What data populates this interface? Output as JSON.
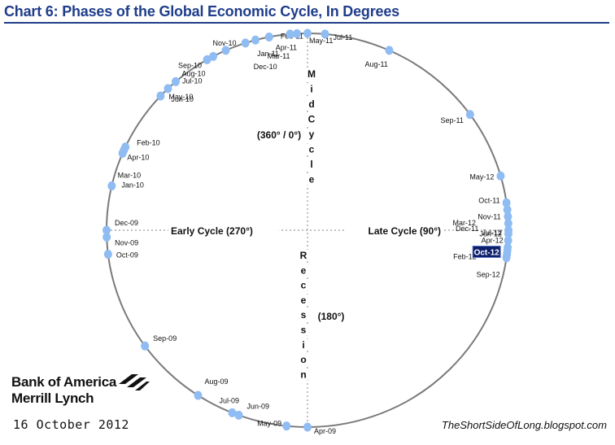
{
  "title": "Chart 6: Phases of the Global Economic Cycle, In Degrees",
  "branding": {
    "logo_line1": "Bank of America",
    "logo_line2": "Merrill Lynch",
    "date": "16 October 2012",
    "source": "TheShortSideOfLong.blogspot.com"
  },
  "colors": {
    "title": "#1f3d8a",
    "points": "#8fbcf2",
    "highlight_bg": "#0d1f6b",
    "circle": "#7a7a7a"
  },
  "chart_data": {
    "type": "scatter",
    "subtype": "polar-circle",
    "title": "Chart 6: Phases of the Global Economic Cycle, In Degrees",
    "axes": {
      "top_label_text": "Mid Cycle",
      "right_label": "Late Cycle (90°)",
      "left_label": "Early Cycle (270°)",
      "bottom_label_text": "Recession",
      "top_value": "(360° / 0°)",
      "bottom_value": "(180°)"
    },
    "points": [
      {
        "label": "Apr-09",
        "degree": 180
      },
      {
        "label": "May-09",
        "degree": 186
      },
      {
        "label": "Jun-09",
        "degree": 200
      },
      {
        "label": "Jul-09",
        "degree": 202
      },
      {
        "label": "Aug-09",
        "degree": 213
      },
      {
        "label": "Sep-09",
        "degree": 234
      },
      {
        "label": "Oct-09",
        "degree": 263
      },
      {
        "label": "Nov-09",
        "degree": 268
      },
      {
        "label": "Dec-09",
        "degree": 270
      },
      {
        "label": "Jan-10",
        "degree": 283
      },
      {
        "label": "Mar-10",
        "degree": 293
      },
      {
        "label": "Apr-10",
        "degree": 294
      },
      {
        "label": "Feb-10",
        "degree": 295
      },
      {
        "label": "May-10",
        "degree": 313
      },
      {
        "label": "Jun-10",
        "degree": 316
      },
      {
        "label": "Jul-10",
        "degree": 319
      },
      {
        "label": "Aug-10",
        "degree": 330
      },
      {
        "label": "Sep-10",
        "degree": 332
      },
      {
        "label": "Nov-10",
        "degree": 336
      },
      {
        "label": "Dec-10",
        "degree": 342
      },
      {
        "label": "Jan-11",
        "degree": 345
      },
      {
        "label": "Feb-11",
        "degree": 349
      },
      {
        "label": "Mar-11",
        "degree": 355
      },
      {
        "label": "Apr-11",
        "degree": 357
      },
      {
        "label": "May-11",
        "degree": 0
      },
      {
        "label": "Jul-11",
        "degree": 5
      },
      {
        "label": "Aug-11",
        "degree": 24
      },
      {
        "label": "Sep-11",
        "degree": 54
      },
      {
        "label": "May-12",
        "degree": 74
      },
      {
        "label": "Oct-11",
        "degree": 82
      },
      {
        "label": "Nov-11",
        "degree": 84
      },
      {
        "label": "Dec-11",
        "degree": 86
      },
      {
        "label": "Jun-12",
        "degree": 88
      },
      {
        "label": "Mar-12",
        "degree": 90
      },
      {
        "label": "Jul-12",
        "degree": 91
      },
      {
        "label": "Apr-12",
        "degree": 93
      },
      {
        "label": "Jan-12",
        "degree": 95
      },
      {
        "label": "Feb-12",
        "degree": 96
      },
      {
        "label": "Oct-12",
        "degree": 97,
        "highlight": true
      },
      {
        "label": "Sep-12",
        "degree": 98
      }
    ]
  }
}
